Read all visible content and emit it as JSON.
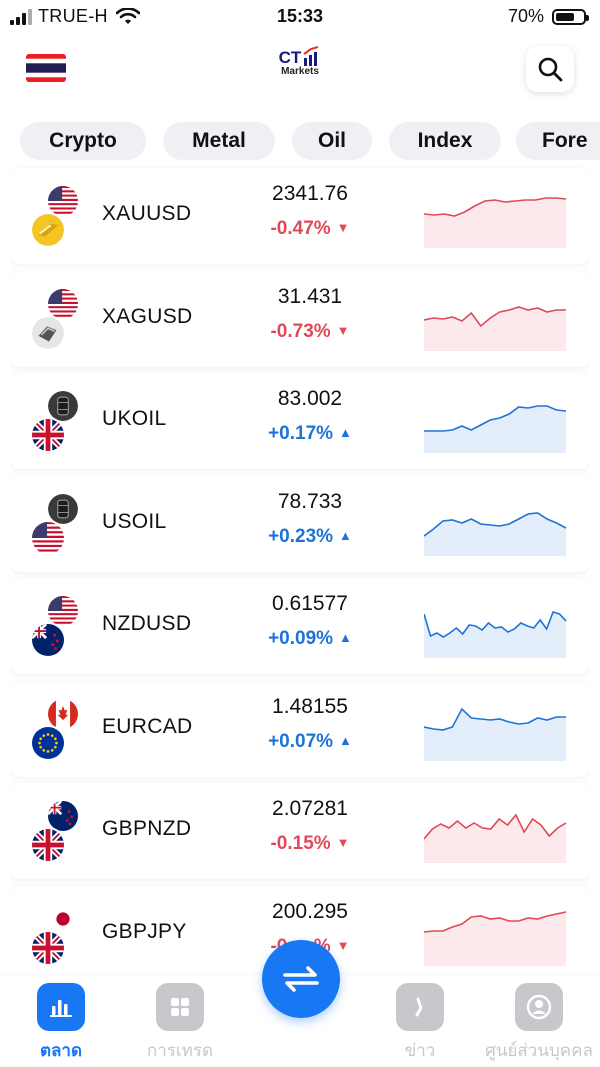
{
  "status_bar": {
    "carrier": "TRUE-H",
    "time": "15:33",
    "battery": "70%",
    "battery_level": 0.7
  },
  "header": {
    "flag": "thailand-flag",
    "logo_text": "CT",
    "logo_sub": "Markets",
    "search_icon": "search-icon"
  },
  "tabs": [
    "Crypto",
    "Metal",
    "Oil",
    "Index",
    "Fore"
  ],
  "instruments": [
    {
      "symbol": "XAUUSD",
      "price": "2341.76",
      "change": "-0.47%",
      "direction": "down",
      "icons": [
        "us-flag",
        "gold-coin"
      ],
      "spark": [
        22,
        23,
        22,
        24,
        20,
        14,
        9,
        8,
        10,
        9,
        8,
        8,
        6,
        6,
        7
      ]
    },
    {
      "symbol": "XAGUSD",
      "price": "31.431",
      "change": "-0.73%",
      "direction": "down",
      "icons": [
        "us-flag",
        "silver-coin"
      ],
      "spark": [
        25,
        23,
        24,
        22,
        26,
        18,
        31,
        23,
        17,
        15,
        12,
        15,
        13,
        17,
        15,
        15
      ]
    },
    {
      "symbol": "UKOIL",
      "price": "83.002",
      "change": "+0.17%",
      "direction": "up",
      "icons": [
        "oil-barrel",
        "uk-flag"
      ],
      "spark": [
        34,
        34,
        34,
        33,
        29,
        33,
        28,
        23,
        21,
        17,
        10,
        11,
        9,
        9,
        13,
        14
      ]
    },
    {
      "symbol": "USOIL",
      "price": "78.733",
      "change": "+0.23%",
      "direction": "up",
      "icons": [
        "oil-barrel",
        "us-flag"
      ],
      "spark": [
        36,
        29,
        21,
        20,
        23,
        19,
        24,
        25,
        26,
        24,
        19,
        14,
        13,
        19,
        23,
        28
      ]
    },
    {
      "symbol": "NZDUSD",
      "price": "0.61577",
      "change": "+0.09%",
      "direction": "up",
      "icons": [
        "us-flag",
        "nz-flag"
      ],
      "spark": [
        12,
        34,
        31,
        35,
        31,
        26,
        32,
        23,
        24,
        28,
        21,
        26,
        25,
        30,
        27,
        21,
        24,
        26,
        18,
        27,
        10,
        12,
        19
      ]
    },
    {
      "symbol": "EURCAD",
      "price": "1.48155",
      "change": "+0.07%",
      "direction": "up",
      "icons": [
        "canada-flag",
        "eu-flag"
      ],
      "spark": [
        22,
        24,
        25,
        22,
        4,
        13,
        14,
        15,
        14,
        17,
        19,
        18,
        13,
        15,
        12,
        12
      ]
    },
    {
      "symbol": "GBPNZD",
      "price": "2.07281",
      "change": "-0.15%",
      "direction": "down",
      "icons": [
        "nz-flag",
        "uk-flag"
      ],
      "spark": [
        32,
        22,
        17,
        21,
        14,
        21,
        16,
        21,
        22,
        12,
        18,
        8,
        25,
        12,
        18,
        29,
        21,
        16
      ]
    },
    {
      "symbol": "GBPJPY",
      "price": "200.295",
      "change": "-0.__%",
      "direction": "down",
      "icons": [
        "japan-flag",
        "uk-flag"
      ],
      "spark": [
        22,
        21,
        21,
        17,
        14,
        7,
        6,
        9,
        8,
        11,
        11,
        8,
        9,
        6,
        4,
        2
      ]
    }
  ],
  "nav": [
    {
      "label": "ตลาด",
      "icon": "bar-chart-icon",
      "active": true
    },
    {
      "label": "การเทรด",
      "icon": "grid-icon",
      "active": false
    },
    {
      "label": "ข่าว",
      "icon": "news-icon",
      "active": false
    },
    {
      "label": "ศูนย์ส่วนบุคคล",
      "icon": "user-icon",
      "active": false
    }
  ],
  "fab_icon": "swap-arrows-icon",
  "colors": {
    "up": "#1e73d6",
    "down": "#e04a57",
    "accent": "#1877f2",
    "tab_bg": "#eef0f3"
  }
}
